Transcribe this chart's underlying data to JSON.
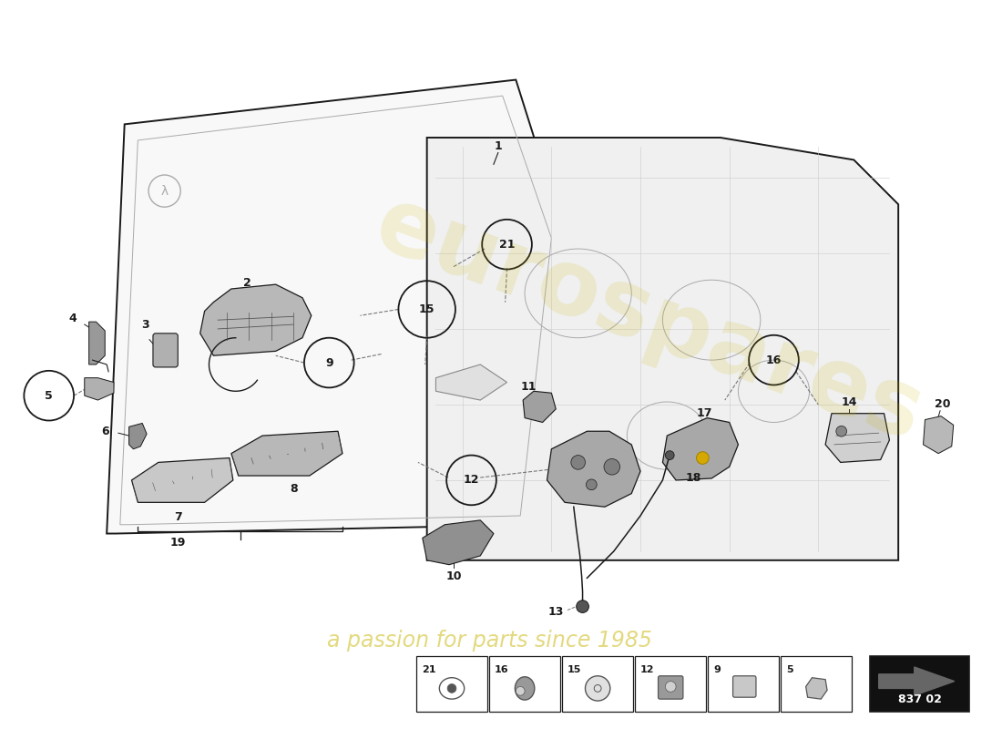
{
  "background_color": "#ffffff",
  "line_color": "#1a1a1a",
  "part_number": "837 02",
  "watermark_text": "eurospares",
  "watermark_subtext": "a passion for parts since 1985",
  "thumbnail_labels": [
    21,
    16,
    15,
    12,
    9,
    5
  ],
  "gray_part": "#888888",
  "light_gray": "#cccccc",
  "mid_gray": "#999999",
  "dark_gray": "#555555"
}
